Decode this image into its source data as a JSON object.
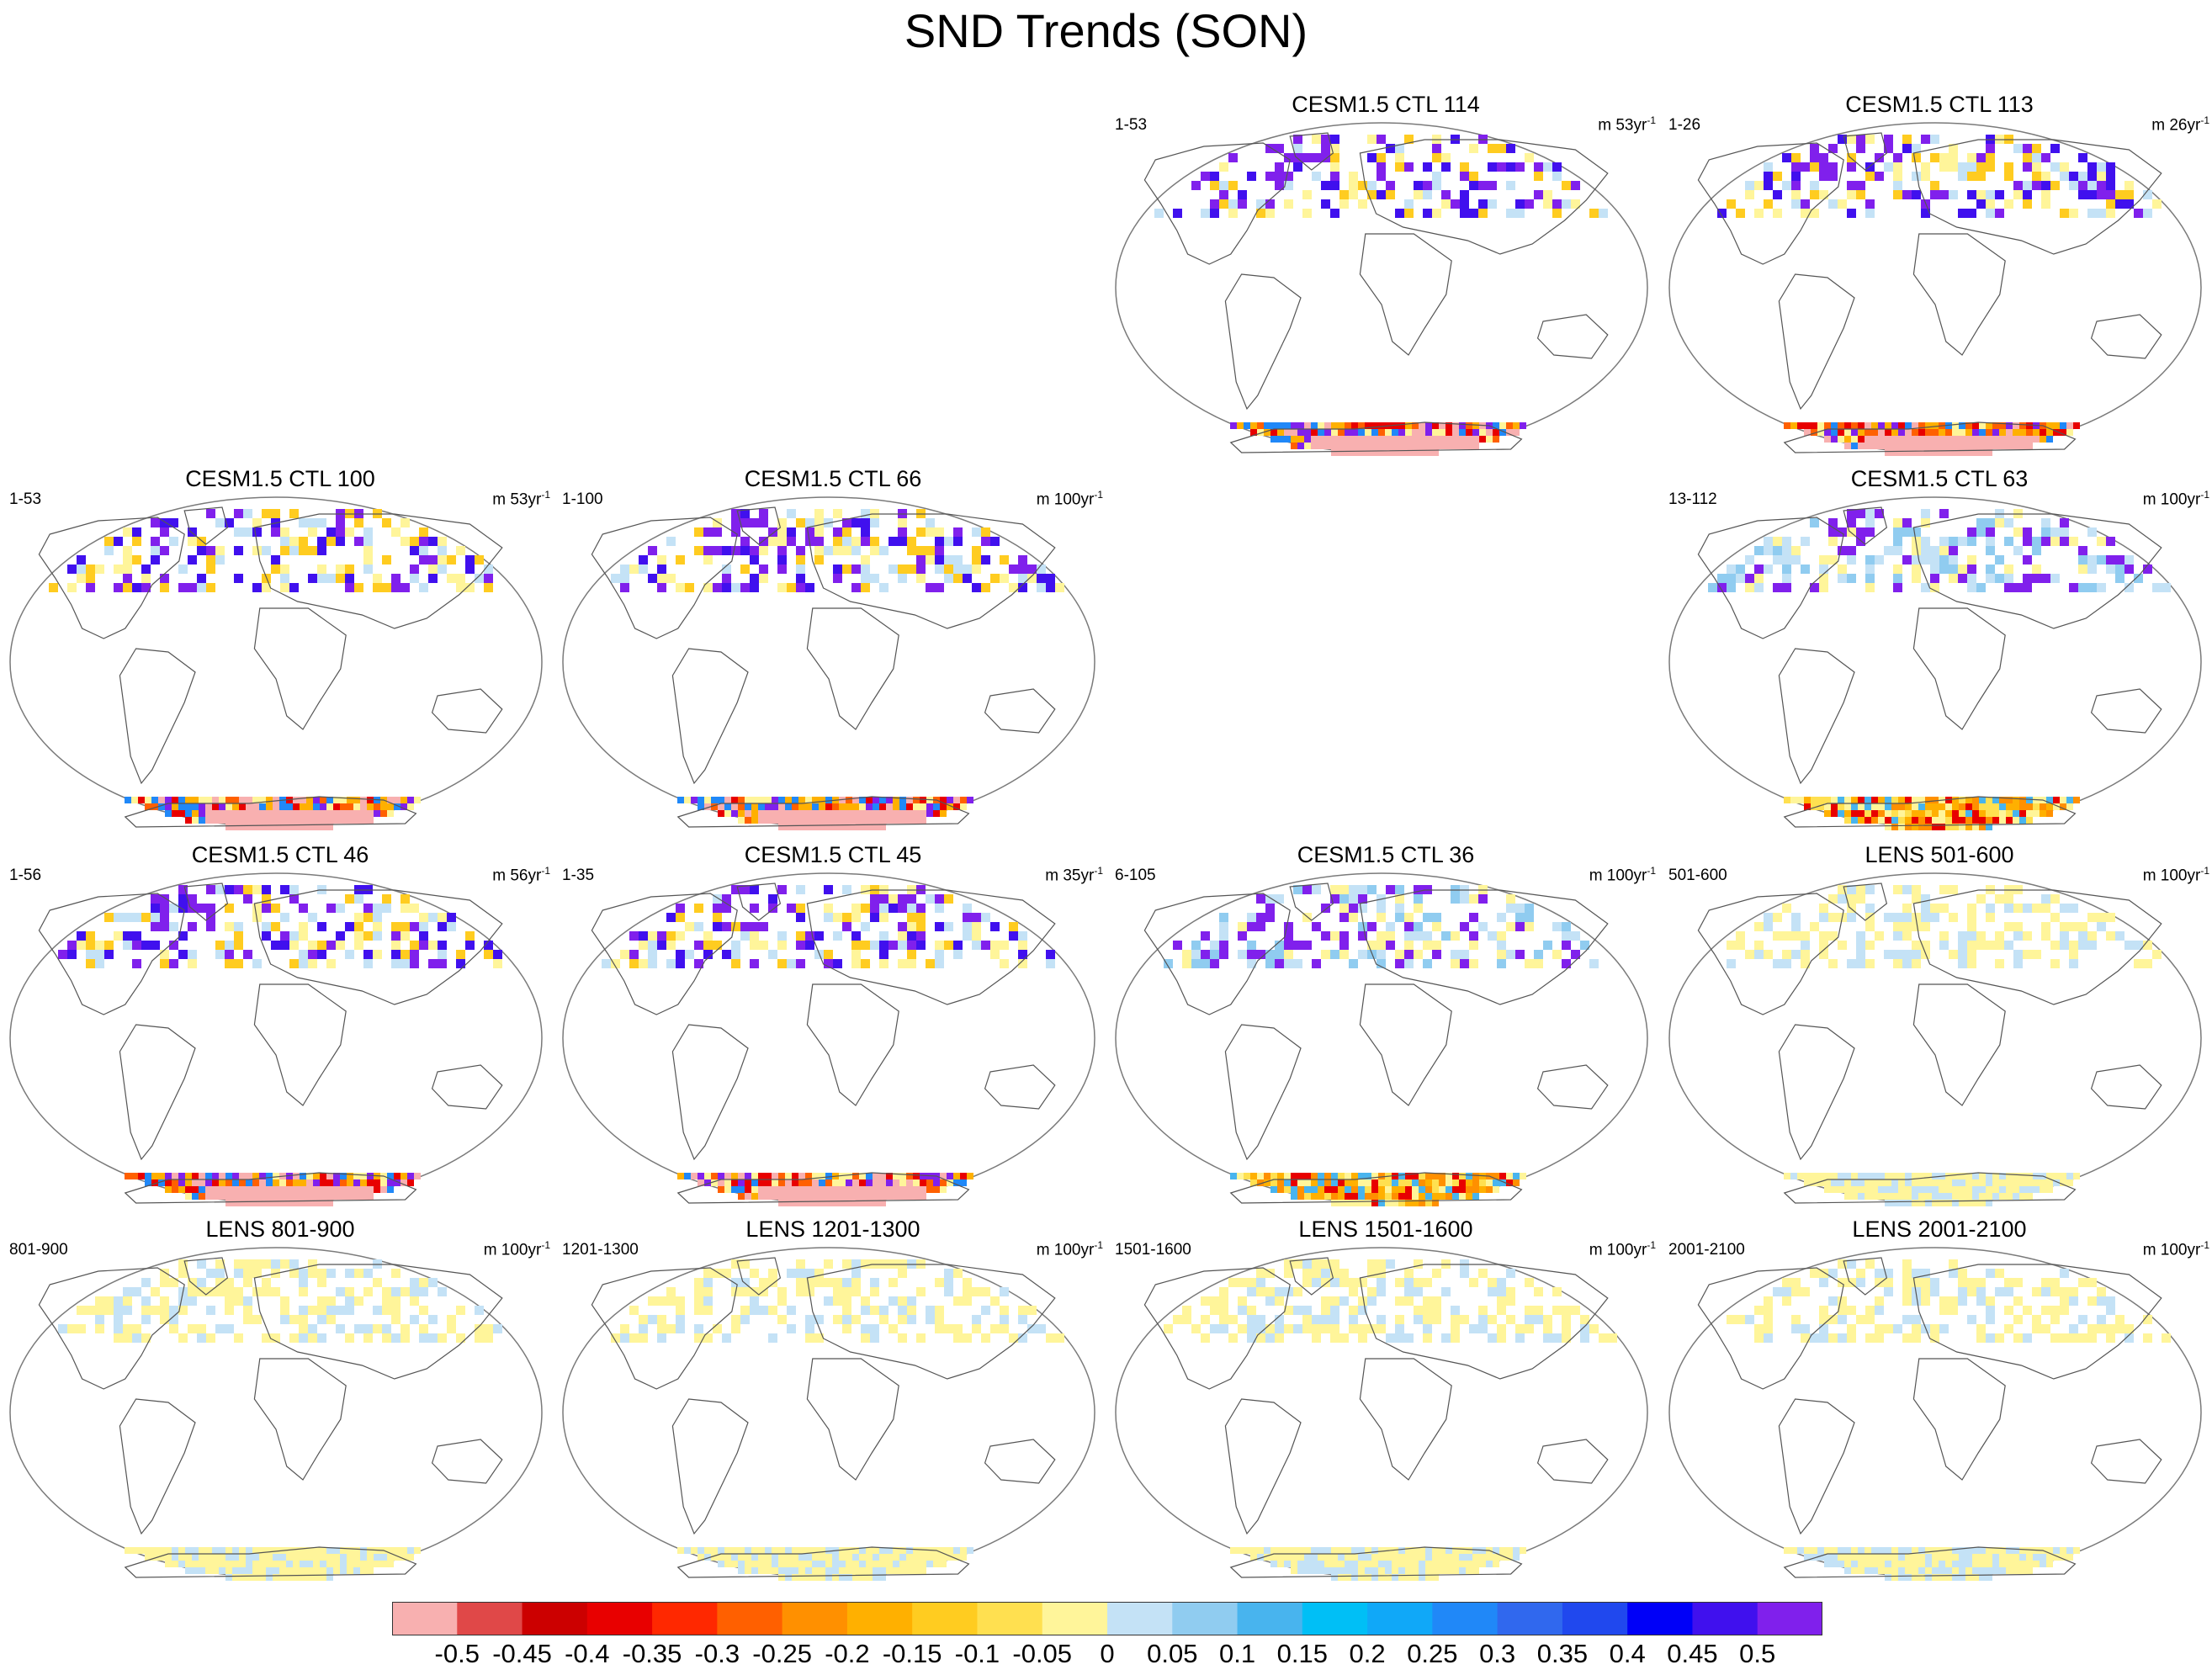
{
  "title": "SND Trends (SON)",
  "panels": [
    {
      "title": "CESM1.5 CTL 114",
      "left_label": "1-53",
      "right_label": "m 53yr",
      "exponent": "-1",
      "variant": "strong",
      "row": 0,
      "col": 2
    },
    {
      "title": "CESM1.5 CTL 113",
      "left_label": "1-26",
      "right_label": "m 26yr",
      "exponent": "-1",
      "variant": "strong",
      "row": 0,
      "col": 3
    },
    {
      "title": "CESM1.5 CTL 100",
      "left_label": "1-53",
      "right_label": "m 53yr",
      "exponent": "-1",
      "variant": "strong",
      "row": 1,
      "col": 0
    },
    {
      "title": "CESM1.5 CTL 66",
      "left_label": "1-100",
      "right_label": "m 100yr",
      "exponent": "-1",
      "variant": "strong",
      "row": 1,
      "col": 1
    },
    {
      "title": "CESM1.5 CTL 63",
      "left_label": "13-112",
      "right_label": "m 100yr",
      "exponent": "-1",
      "variant": "moderate",
      "row": 1,
      "col": 3
    },
    {
      "title": "CESM1.5 CTL 46",
      "left_label": "1-56",
      "right_label": "m 56yr",
      "exponent": "-1",
      "variant": "strong",
      "row": 2,
      "col": 0
    },
    {
      "title": "CESM1.5 CTL 45",
      "left_label": "1-35",
      "right_label": "m 35yr",
      "exponent": "-1",
      "variant": "strong",
      "row": 2,
      "col": 1
    },
    {
      "title": "CESM1.5 CTL 36",
      "left_label": "6-105",
      "right_label": "m 100yr",
      "exponent": "-1",
      "variant": "moderate",
      "row": 2,
      "col": 2
    },
    {
      "title": "LENS 501-600",
      "left_label": "501-600",
      "right_label": "m 100yr",
      "exponent": "-1",
      "variant": "weak",
      "row": 2,
      "col": 3
    },
    {
      "title": "LENS 801-900",
      "left_label": "801-900",
      "right_label": "m 100yr",
      "exponent": "-1",
      "variant": "weak",
      "row": 3,
      "col": 0
    },
    {
      "title": "LENS 1201-1300",
      "left_label": "1201-1300",
      "right_label": "m 100yr",
      "exponent": "-1",
      "variant": "weak",
      "row": 3,
      "col": 1
    },
    {
      "title": "LENS 1501-1600",
      "left_label": "1501-1600",
      "right_label": "m 100yr",
      "exponent": "-1",
      "variant": "weak",
      "row": 3,
      "col": 2
    },
    {
      "title": "LENS 2001-2100",
      "left_label": "2001-2100",
      "right_label": "m 100yr",
      "exponent": "-1",
      "variant": "weak",
      "row": 3,
      "col": 3
    }
  ],
  "colorbar": {
    "colors": [
      "#f8b0b0",
      "#e04848",
      "#cc0000",
      "#e80000",
      "#ff2800",
      "#ff6000",
      "#ff9000",
      "#ffb000",
      "#ffcc20",
      "#ffe050",
      "#fff59a",
      "#c4e2f6",
      "#90ccf0",
      "#48b4ee",
      "#00bff6",
      "#10a8f8",
      "#2088f8",
      "#3068ee",
      "#2048ee",
      "#0000f8",
      "#4010ee",
      "#8020ec"
    ],
    "labels": [
      "-0.5",
      "-0.45",
      "-0.4",
      "-0.35",
      "-0.3",
      "-0.25",
      "-0.2",
      "-0.15",
      "-0.1",
      "-0.05",
      "0",
      "0.05",
      "0.1",
      "0.15",
      "0.2",
      "0.25",
      "0.3",
      "0.35",
      "0.4",
      "0.45",
      "0.5"
    ]
  }
}
